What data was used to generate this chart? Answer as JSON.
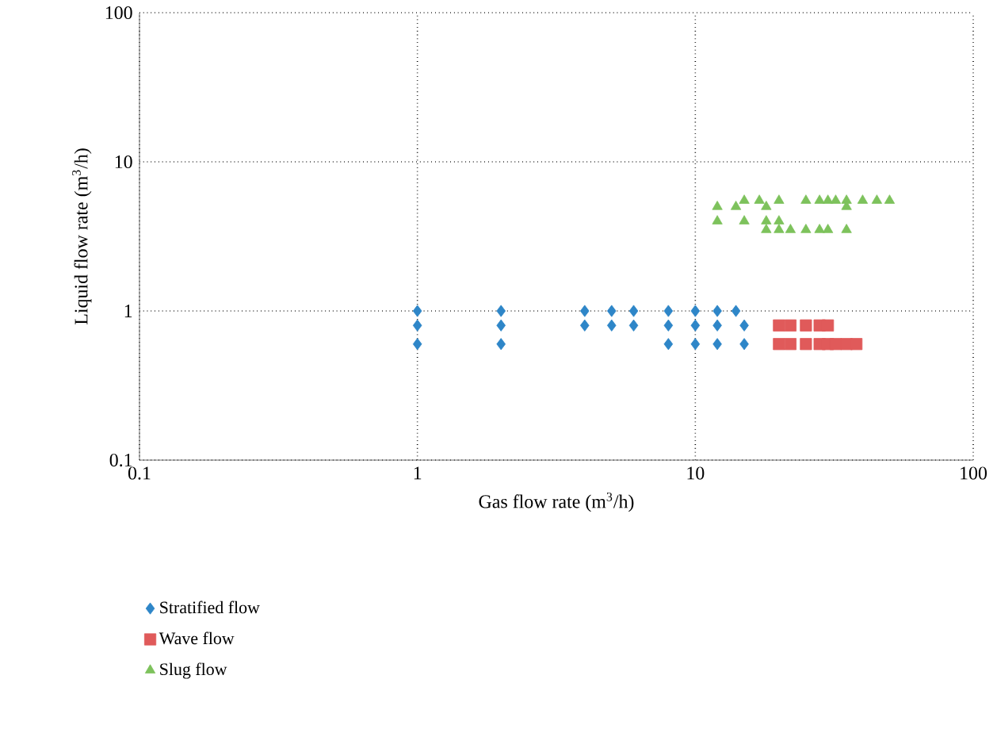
{
  "chart_data": {
    "type": "scatter",
    "xlabel": "Gas flow rate (m$^{3}$/h)",
    "ylabel": "Liquid flow rate (m$^{3}$/h)",
    "log": "xy",
    "xlim": [
      0.1,
      100
    ],
    "ylim": [
      0.1,
      100
    ],
    "xticks": [
      0.1,
      1,
      10,
      100
    ],
    "yticks": [
      0.1,
      1,
      10,
      100
    ],
    "grid": true,
    "legend": "bottom left",
    "series": [
      {
        "name": "Stratified flow",
        "color": "#2e86c8",
        "marker": "diamond",
        "x": [
          1,
          1,
          1,
          2,
          2,
          2,
          4,
          4,
          5,
          5,
          6,
          6,
          8,
          8,
          8,
          10,
          10,
          10,
          12,
          12,
          12,
          14,
          15,
          15
        ],
        "values": [
          1,
          0.8,
          0.6,
          1,
          0.8,
          0.6,
          1,
          0.8,
          1,
          0.8,
          1,
          0.8,
          1,
          0.8,
          0.6,
          1,
          0.8,
          0.6,
          1,
          0.8,
          0.6,
          1,
          0.8,
          0.6
        ]
      },
      {
        "name": "Wave flow",
        "color": "#e05a5a",
        "marker": "square",
        "x": [
          20,
          22,
          25,
          28,
          30,
          20,
          22,
          25,
          28,
          30,
          32,
          35,
          38
        ],
        "values": [
          0.8,
          0.8,
          0.8,
          0.8,
          0.8,
          0.6,
          0.6,
          0.6,
          0.6,
          0.6,
          0.6,
          0.6,
          0.6
        ]
      },
      {
        "name": "Slug flow",
        "color": "#7dc25c",
        "marker": "triangle",
        "x": [
          12,
          12,
          14,
          15,
          15,
          17,
          18,
          18,
          18,
          20,
          20,
          20,
          22,
          25,
          25,
          28,
          28,
          30,
          30,
          32,
          35,
          35,
          35,
          40,
          45,
          50
        ],
        "values": [
          5,
          4,
          5,
          5.5,
          4,
          5.5,
          5,
          3.5,
          4,
          5.5,
          4,
          3.5,
          3.5,
          5.5,
          3.5,
          5.5,
          3.5,
          5.5,
          3.5,
          5.5,
          5.5,
          5,
          3.5,
          5.5,
          5.5,
          5.5
        ]
      }
    ]
  }
}
